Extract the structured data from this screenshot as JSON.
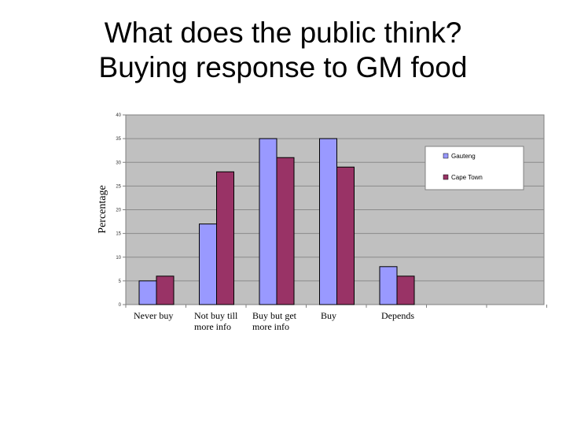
{
  "slide": {
    "title_line1": "What does the public think?",
    "title_line2": "Buying response to GM food"
  },
  "chart_data": {
    "type": "bar",
    "title": "",
    "xlabel": "",
    "ylabel": "Percentage",
    "ylim": [
      0,
      40
    ],
    "yticks": [
      0,
      5,
      10,
      15,
      20,
      25,
      30,
      35,
      40
    ],
    "grid": true,
    "legend_position": "right",
    "categories": [
      "Never buy",
      "Not buy till\nmore info",
      "Buy but get\nmore info",
      "Buy",
      "Depends"
    ],
    "series": [
      {
        "name": "Gauteng",
        "color": "#9999ff",
        "values": [
          5,
          17,
          35,
          35,
          8
        ]
      },
      {
        "name": "Cape Town",
        "color": "#993366",
        "values": [
          6,
          28,
          31,
          29,
          6
        ]
      }
    ],
    "plot_background": "#c0c0c0"
  }
}
